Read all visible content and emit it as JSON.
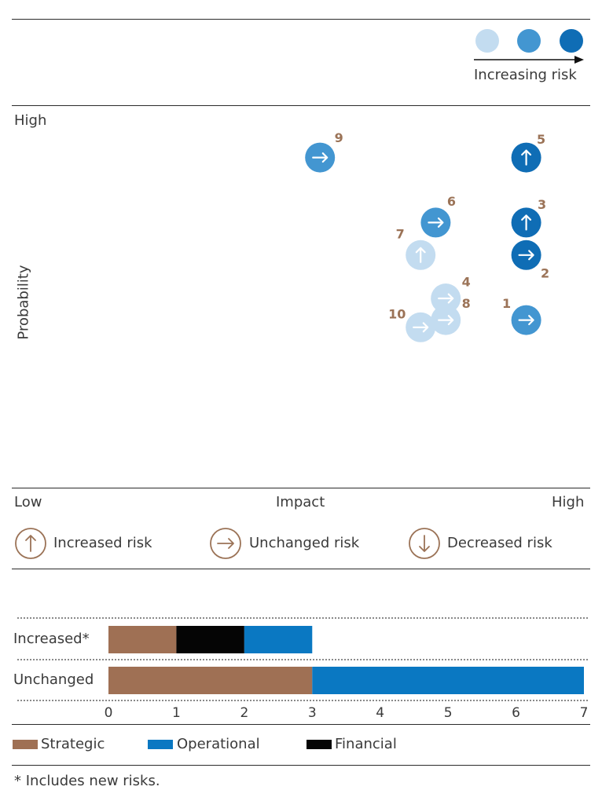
{
  "colors": {
    "level1": "#c3dcf0",
    "level2": "#4396d1",
    "level3": "#0f6db5",
    "number": "#9b7357",
    "arrow_legend": "#9b7357",
    "strategic": "#9f7054",
    "operational": "#0a78c2",
    "financial": "#050505"
  },
  "risk_scale": {
    "label": "Increasing risk"
  },
  "matrix": {
    "y_high": "High",
    "y_axis_label": "Probability",
    "x_low": "Low",
    "x_axis_label": "Impact",
    "x_high": "High"
  },
  "arrow_legend": [
    {
      "direction": "up",
      "label": "Increased risk"
    },
    {
      "direction": "right",
      "label": "Unchanged risk"
    },
    {
      "direction": "down",
      "label": "Decreased risk"
    }
  ],
  "bar_chart": {
    "footnote": "*  Includes new risks."
  },
  "chart_data": [
    {
      "type": "scatter",
      "title": "",
      "xlabel": "Impact",
      "ylabel": "Probability",
      "xlim": [
        0,
        10
      ],
      "ylim": [
        0,
        10
      ],
      "points": [
        {
          "id": "1",
          "impact": 8.9,
          "probability": 4.4,
          "level": 2,
          "trend": "right"
        },
        {
          "id": "2",
          "impact": 8.9,
          "probability": 6.2,
          "level": 3,
          "trend": "right"
        },
        {
          "id": "3",
          "impact": 8.9,
          "probability": 7.1,
          "level": 3,
          "trend": "up"
        },
        {
          "id": "4",
          "impact": 7.3,
          "probability": 5.0,
          "level": 1,
          "trend": "right"
        },
        {
          "id": "5",
          "impact": 8.9,
          "probability": 8.9,
          "level": 3,
          "trend": "up"
        },
        {
          "id": "6",
          "impact": 7.1,
          "probability": 7.1,
          "level": 2,
          "trend": "right"
        },
        {
          "id": "7",
          "impact": 6.8,
          "probability": 6.2,
          "level": 1,
          "trend": "up"
        },
        {
          "id": "8",
          "impact": 7.3,
          "probability": 4.4,
          "level": 1,
          "trend": "right"
        },
        {
          "id": "9",
          "impact": 4.8,
          "probability": 8.9,
          "level": 2,
          "trend": "right"
        },
        {
          "id": "10",
          "impact": 6.8,
          "probability": 4.2,
          "level": 1,
          "trend": "right"
        }
      ]
    },
    {
      "type": "bar",
      "orientation": "horizontal",
      "stacked": true,
      "categories": [
        "Increased*",
        "Unchanged"
      ],
      "series": [
        {
          "name": "Strategic",
          "values": [
            1,
            3
          ]
        },
        {
          "name": "Financial",
          "values": [
            1,
            0
          ]
        },
        {
          "name": "Operational",
          "values": [
            1,
            4
          ]
        }
      ],
      "legend_order": [
        "Strategic",
        "Operational",
        "Financial"
      ],
      "xlim": [
        0,
        7
      ],
      "xticks": [
        "0",
        "1",
        "2",
        "3",
        "4",
        "5",
        "6",
        "7"
      ]
    }
  ]
}
